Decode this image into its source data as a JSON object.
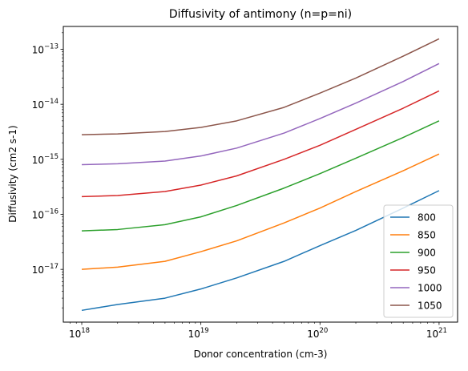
{
  "chart_data": {
    "type": "line",
    "title": "Diffusivity of antimony (n=p=ni)",
    "xlabel": "Donor concentration (cm-3)",
    "ylabel": "Diffusivity (cm2 s-1)",
    "xscale": "log",
    "yscale": "log",
    "xlim": [
      7e+17,
      1.43e+21
    ],
    "ylim": [
      1.1e-18,
      2.6e-13
    ],
    "x_ticks": [
      {
        "value": 1e+18,
        "label": "10",
        "exp": "18"
      },
      {
        "value": 1e+19,
        "label": "10",
        "exp": "19"
      },
      {
        "value": 1e+20,
        "label": "10",
        "exp": "20"
      },
      {
        "value": 1e+21,
        "label": "10",
        "exp": "21"
      }
    ],
    "y_ticks": [
      {
        "value": 1e-17,
        "label": "10",
        "exp": "−17"
      },
      {
        "value": 1e-16,
        "label": "10",
        "exp": "−16"
      },
      {
        "value": 1e-15,
        "label": "10",
        "exp": "−15"
      },
      {
        "value": 1e-14,
        "label": "10",
        "exp": "−14"
      },
      {
        "value": 1e-13,
        "label": "10",
        "exp": "−13"
      }
    ],
    "x": [
      1e+18,
      2e+18,
      5e+18,
      1e+19,
      2e+19,
      5e+19,
      1e+20,
      2e+20,
      5e+20,
      1e+21
    ],
    "series": [
      {
        "name": "800",
        "color": "#1f77b4",
        "values": [
          1.8e-18,
          2.3e-18,
          3e-18,
          4.4e-18,
          7e-18,
          1.4e-17,
          2.7e-17,
          5.1e-17,
          1.3e-16,
          2.7e-16
        ]
      },
      {
        "name": "850",
        "color": "#ff7f0e",
        "values": [
          1e-17,
          1.1e-17,
          1.4e-17,
          2.1e-17,
          3.3e-17,
          7e-17,
          1.3e-16,
          2.6e-16,
          6.2e-16,
          1.25e-15
        ]
      },
      {
        "name": "900",
        "color": "#2ca02c",
        "values": [
          5e-17,
          5.3e-17,
          6.5e-17,
          9e-17,
          1.45e-16,
          3e-16,
          5.5e-16,
          1.05e-15,
          2.5e-15,
          5e-15
        ]
      },
      {
        "name": "950",
        "color": "#d62728",
        "values": [
          2.1e-16,
          2.2e-16,
          2.6e-16,
          3.4e-16,
          5e-16,
          1e-15,
          1.8e-15,
          3.5e-15,
          8.5e-15,
          1.75e-14
        ]
      },
      {
        "name": "1000",
        "color": "#9467bd",
        "values": [
          8e-16,
          8.3e-16,
          9.3e-16,
          1.15e-15,
          1.6e-15,
          3e-15,
          5.5e-15,
          1.05e-14,
          2.6e-14,
          5.5e-14
        ]
      },
      {
        "name": "1050",
        "color": "#8c564b",
        "values": [
          2.8e-15,
          2.9e-15,
          3.2e-15,
          3.8e-15,
          5e-15,
          8.8e-15,
          1.6e-14,
          3e-14,
          7.5e-14,
          1.55e-13
        ]
      }
    ],
    "legend_position": "lower-right",
    "grid": false
  }
}
